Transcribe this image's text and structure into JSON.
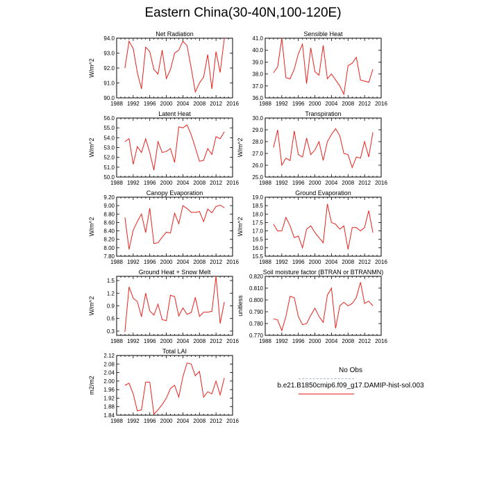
{
  "title": "Eastern China(30-40N,100-120E)",
  "legend": [
    {
      "name": "No Obs",
      "color": "#aab4d8",
      "style": "dashed"
    },
    {
      "name": "b.e21.B1850cmip6.f09_g17.DAMIP-hist-sol.003",
      "color": "#e8201a",
      "style": "solid"
    }
  ],
  "chart_data": [
    {
      "type": "line",
      "title": "Net Radiation",
      "ylabel": "W/m^2",
      "xlim": [
        1988,
        2016
      ],
      "xticks": [
        1988,
        1992,
        1996,
        2000,
        2004,
        2008,
        2012,
        2016
      ],
      "ylim": [
        90.0,
        94.0
      ],
      "yticks": [
        "90.0",
        "91.0",
        "92.0",
        "93.0",
        "94.0"
      ],
      "x": [
        1990,
        1991,
        1992,
        1993,
        1994,
        1995,
        1996,
        1997,
        1998,
        1999,
        2000,
        2001,
        2002,
        2003,
        2004,
        2005,
        2006,
        2007,
        2008,
        2009,
        2010,
        2011,
        2012,
        2013,
        2014
      ],
      "series": [
        {
          "values": [
            92.0,
            93.8,
            93.3,
            91.7,
            90.6,
            93.4,
            93.1,
            91.9,
            91.6,
            93.2,
            91.3,
            91.9,
            93.0,
            93.2,
            93.8,
            93.5,
            92.0,
            90.4,
            91.0,
            91.4,
            92.9,
            90.6,
            93.1,
            91.7,
            94.0
          ]
        }
      ]
    },
    {
      "type": "line",
      "title": "Sensible Heat",
      "ylabel": "",
      "xlim": [
        1988,
        2016
      ],
      "xticks": [
        1988,
        1992,
        1996,
        2000,
        2004,
        2008,
        2012,
        2016
      ],
      "ylim": [
        36.0,
        41.0
      ],
      "yticks": [
        "36.0",
        "37.0",
        "38.0",
        "39.0",
        "40.0",
        "41.0"
      ],
      "x": [
        1990,
        1991,
        1992,
        1993,
        1994,
        1995,
        1996,
        1997,
        1998,
        1999,
        2000,
        2001,
        2002,
        2003,
        2004,
        2005,
        2006,
        2007,
        2008,
        2009,
        2010,
        2011,
        2012,
        2013,
        2014
      ],
      "series": [
        {
          "values": [
            38.1,
            38.6,
            41.0,
            37.7,
            37.6,
            38.4,
            39.7,
            40.5,
            37.2,
            40.2,
            38.2,
            37.9,
            40.4,
            37.6,
            38.0,
            37.5,
            37.0,
            36.3,
            38.7,
            38.9,
            39.4,
            37.5,
            37.4,
            37.3,
            38.4
          ]
        }
      ]
    },
    {
      "type": "line",
      "title": "Latent Heat",
      "ylabel": "W/m^2",
      "xlim": [
        1988,
        2016
      ],
      "xticks": [
        1988,
        1992,
        1996,
        2000,
        2004,
        2008,
        2012,
        2016
      ],
      "ylim": [
        50.0,
        56.0
      ],
      "yticks": [
        "50.0",
        "51.0",
        "52.0",
        "53.0",
        "54.0",
        "55.0",
        "56.0"
      ],
      "x": [
        1990,
        1991,
        1992,
        1993,
        1994,
        1995,
        1996,
        1997,
        1998,
        1999,
        2000,
        2001,
        2002,
        2003,
        2004,
        2005,
        2006,
        2007,
        2008,
        2009,
        2010,
        2011,
        2012,
        2013,
        2014
      ],
      "series": [
        {
          "values": [
            53.6,
            53.9,
            51.3,
            53.1,
            52.5,
            53.9,
            52.5,
            50.7,
            53.6,
            52.5,
            52.6,
            52.9,
            51.5,
            55.1,
            55.0,
            55.3,
            54.3,
            53.0,
            51.6,
            51.7,
            52.9,
            52.3,
            54.1,
            53.9,
            54.6
          ]
        }
      ]
    },
    {
      "type": "line",
      "title": "Transpiration",
      "ylabel": "W/m^2",
      "xlim": [
        1988,
        2016
      ],
      "xticks": [
        1988,
        1992,
        1996,
        2000,
        2004,
        2008,
        2012,
        2016
      ],
      "ylim": [
        25.0,
        30.0
      ],
      "yticks": [
        "25.0",
        "26.0",
        "27.0",
        "28.0",
        "29.0",
        "30.0"
      ],
      "x": [
        1990,
        1991,
        1992,
        1993,
        1994,
        1995,
        1996,
        1997,
        1998,
        1999,
        2000,
        2001,
        2002,
        2003,
        2004,
        2005,
        2006,
        2007,
        2008,
        2009,
        2010,
        2011,
        2012,
        2013,
        2014
      ],
      "series": [
        {
          "values": [
            27.5,
            29.0,
            26.0,
            26.6,
            26.4,
            28.9,
            26.9,
            26.7,
            28.3,
            26.9,
            27.3,
            28.0,
            26.4,
            28.0,
            28.6,
            29.1,
            28.5,
            27.0,
            26.9,
            25.8,
            26.7,
            26.6,
            28.0,
            26.7,
            28.8
          ]
        }
      ]
    },
    {
      "type": "line",
      "title": "Canopy Evaporation",
      "ylabel": "W/m^2",
      "xlim": [
        1988,
        2016
      ],
      "xticks": [
        1988,
        1992,
        1996,
        2000,
        2004,
        2008,
        2012,
        2016
      ],
      "ylim": [
        7.8,
        9.2
      ],
      "yticks": [
        "7.80",
        "8.00",
        "8.20",
        "8.40",
        "8.60",
        "8.80",
        "9.00",
        "9.20"
      ],
      "x": [
        1990,
        1991,
        1992,
        1993,
        1994,
        1995,
        1996,
        1997,
        1998,
        1999,
        2000,
        2001,
        2002,
        2003,
        2004,
        2005,
        2006,
        2007,
        2008,
        2009,
        2010,
        2011,
        2012,
        2013,
        2014
      ],
      "series": [
        {
          "values": [
            8.72,
            7.96,
            8.42,
            8.62,
            8.8,
            8.36,
            8.94,
            8.1,
            8.12,
            8.25,
            8.37,
            8.35,
            8.82,
            8.57,
            9.0,
            8.93,
            8.84,
            8.84,
            8.86,
            8.62,
            8.92,
            8.83,
            8.98,
            9.01,
            8.95
          ]
        }
      ]
    },
    {
      "type": "line",
      "title": "Ground Evaporation",
      "ylabel": "W/m^2",
      "xlim": [
        1988,
        2016
      ],
      "xticks": [
        1988,
        1992,
        1996,
        2000,
        2004,
        2008,
        2012,
        2016
      ],
      "ylim": [
        15.5,
        19.0
      ],
      "yticks": [
        "15.5",
        "16.0",
        "16.5",
        "17.0",
        "17.5",
        "18.0",
        "18.5",
        "19.0"
      ],
      "x": [
        1990,
        1991,
        1992,
        1993,
        1994,
        1995,
        1996,
        1997,
        1998,
        1999,
        2000,
        2001,
        2002,
        2003,
        2004,
        2005,
        2006,
        2007,
        2008,
        2009,
        2010,
        2011,
        2012,
        2013,
        2014
      ],
      "series": [
        {
          "values": [
            17.4,
            17.0,
            17.0,
            17.8,
            17.3,
            16.6,
            16.7,
            16.0,
            17.1,
            17.3,
            16.9,
            16.6,
            16.3,
            18.6,
            17.5,
            17.4,
            17.1,
            17.3,
            15.9,
            17.2,
            17.2,
            17.0,
            17.2,
            18.2,
            16.9
          ]
        }
      ]
    },
    {
      "type": "line",
      "title": "Ground Heat + Snow Melt",
      "ylabel": "W/m^2",
      "xlim": [
        1988,
        2016
      ],
      "xticks": [
        1988,
        1992,
        1996,
        2000,
        2004,
        2008,
        2012,
        2016
      ],
      "ylim": [
        0.2,
        1.6
      ],
      "yticks": [
        "0.3",
        "0.6",
        "0.9",
        "1.2",
        "1.5"
      ],
      "ytick_values": [
        0.3,
        0.6,
        0.9,
        1.2,
        1.5
      ],
      "x": [
        1990,
        1991,
        1992,
        1993,
        1994,
        1995,
        1996,
        1997,
        1998,
        1999,
        2000,
        2001,
        2002,
        2003,
        2004,
        2005,
        2006,
        2007,
        2008,
        2009,
        2010,
        2011,
        2012,
        2013,
        2014
      ],
      "series": [
        {
          "values": [
            0.28,
            1.35,
            1.08,
            1.0,
            0.64,
            1.2,
            0.78,
            0.68,
            0.94,
            0.57,
            0.55,
            1.15,
            1.12,
            0.66,
            0.85,
            0.7,
            0.74,
            1.1,
            0.65,
            0.75,
            0.75,
            0.77,
            1.6,
            0.48,
            0.99
          ]
        }
      ]
    },
    {
      "type": "line",
      "title": "Soil moisture factor (BTRAN or BTRANMN)",
      "ylabel": "unitless",
      "xlim": [
        1988,
        2016
      ],
      "xticks": [
        1988,
        1992,
        1996,
        2000,
        2004,
        2008,
        2012,
        2016
      ],
      "ylim": [
        0.77,
        0.82
      ],
      "yticks": [
        "0.770",
        "0.780",
        "0.790",
        "0.800",
        "0.810",
        "0.820"
      ],
      "x": [
        1990,
        1991,
        1992,
        1993,
        1994,
        1995,
        1996,
        1997,
        1998,
        1999,
        2000,
        2001,
        2002,
        2003,
        2004,
        2005,
        2006,
        2007,
        2008,
        2009,
        2010,
        2011,
        2012,
        2013,
        2014
      ],
      "series": [
        {
          "values": [
            0.784,
            0.783,
            0.774,
            0.786,
            0.803,
            0.802,
            0.786,
            0.779,
            0.78,
            0.787,
            0.793,
            0.786,
            0.781,
            0.804,
            0.81,
            0.776,
            0.795,
            0.798,
            0.795,
            0.797,
            0.802,
            0.815,
            0.797,
            0.799,
            0.795
          ]
        }
      ]
    },
    {
      "type": "line",
      "title": "Total LAI",
      "ylabel": "m2/m2",
      "xlim": [
        1988,
        2016
      ],
      "xticks": [
        1988,
        1992,
        1996,
        2000,
        2004,
        2008,
        2012,
        2016
      ],
      "ylim": [
        1.84,
        2.12
      ],
      "yticks": [
        "1.84",
        "1.88",
        "1.92",
        "1.96",
        "2.00",
        "2.04",
        "2.08",
        "2.12"
      ],
      "x": [
        1990,
        1991,
        1992,
        1993,
        1994,
        1995,
        1996,
        1997,
        1998,
        1999,
        2000,
        2001,
        2002,
        2003,
        2004,
        2005,
        2006,
        2007,
        2008,
        2009,
        2010,
        2011,
        2012,
        2013,
        2014
      ],
      "series": [
        {
          "values": [
            1.98,
            1.99,
            1.94,
            1.86,
            1.865,
            1.995,
            1.995,
            1.845,
            1.865,
            1.89,
            1.92,
            1.965,
            1.98,
            1.925,
            2.02,
            2.085,
            2.08,
            2.025,
            2.045,
            1.925,
            1.95,
            1.94,
            2.0,
            1.935,
            2.015
          ]
        }
      ]
    }
  ]
}
